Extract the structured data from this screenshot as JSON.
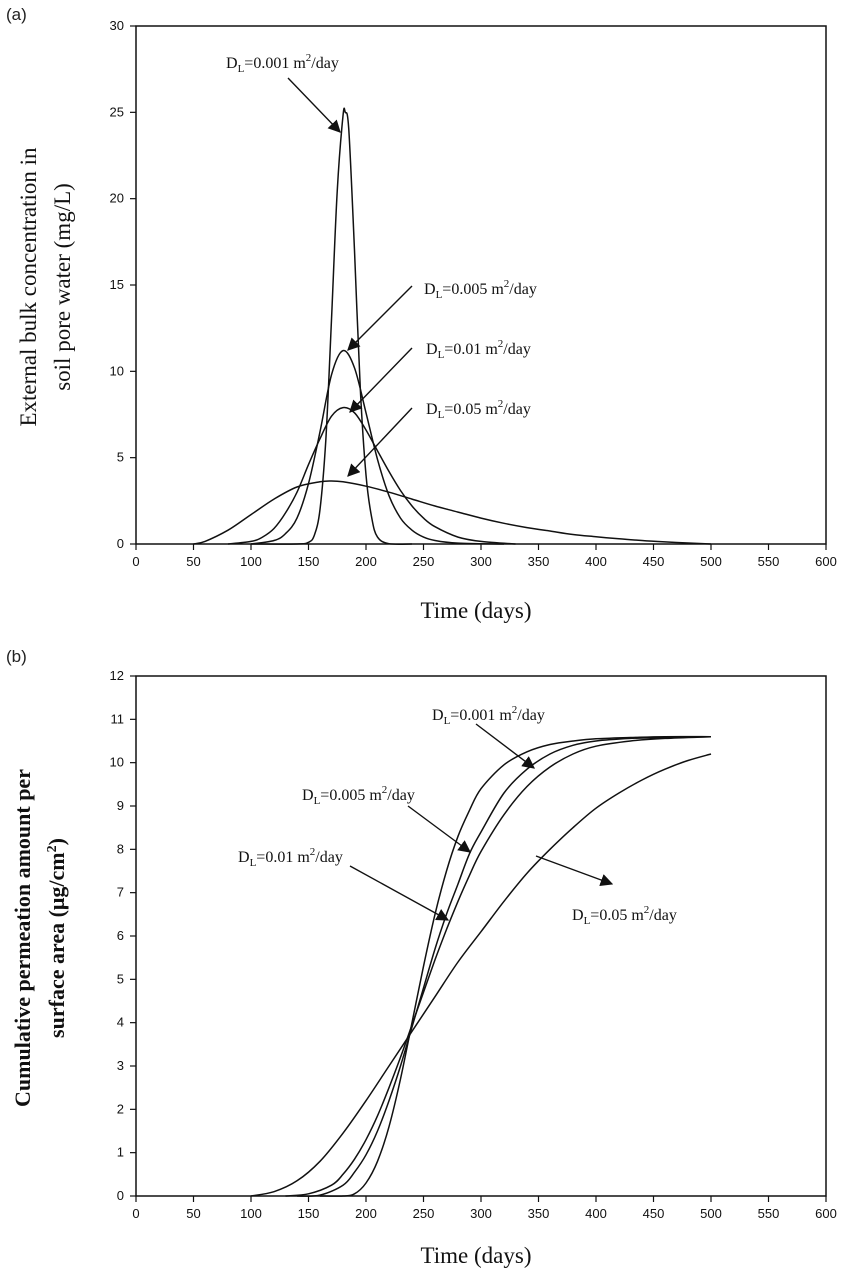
{
  "chart_data": [
    {
      "panel_label": "(a)",
      "type": "line",
      "xlabel": "Time (days)",
      "ylabel_lines": [
        "External bulk concentration in",
        "soil pore water (mg/L)"
      ],
      "xlim": [
        0,
        600
      ],
      "ylim": [
        0,
        30
      ],
      "xticks": [
        0,
        50,
        100,
        150,
        200,
        250,
        300,
        350,
        400,
        450,
        500,
        550,
        600
      ],
      "yticks": [
        0,
        5,
        10,
        15,
        20,
        25,
        30
      ],
      "grid": false,
      "series": [
        {
          "label_prefix": "D",
          "label_sub": "L",
          "label_value": "=0.001 m",
          "label_sup": "2",
          "label_unit": "/day",
          "x": [
            100,
            140,
            150,
            155,
            160,
            165,
            170,
            175,
            180,
            182,
            185,
            190,
            195,
            200,
            205,
            210,
            220,
            240
          ],
          "y": [
            0,
            0,
            0.1,
            0.5,
            2.0,
            6.0,
            13.0,
            20.5,
            24.8,
            25.0,
            24.0,
            17.0,
            9.0,
            4.0,
            1.5,
            0.4,
            0.02,
            0
          ]
        },
        {
          "label_prefix": "D",
          "label_sub": "L",
          "label_value": "=0.005 m",
          "label_sup": "2",
          "label_unit": "/day",
          "x": [
            100,
            120,
            130,
            140,
            150,
            160,
            170,
            180,
            190,
            200,
            210,
            220,
            230,
            240,
            250,
            260,
            280,
            320
          ],
          "y": [
            0,
            0.2,
            0.6,
            1.5,
            3.5,
            6.5,
            9.8,
            11.2,
            10.2,
            7.6,
            4.9,
            2.8,
            1.5,
            0.8,
            0.4,
            0.2,
            0.05,
            0
          ]
        },
        {
          "label_prefix": "D",
          "label_sub": "L",
          "label_value": "=0.01 m",
          "label_sup": "2",
          "label_unit": "/day",
          "x": [
            80,
            100,
            110,
            120,
            130,
            140,
            150,
            160,
            170,
            180,
            190,
            200,
            210,
            220,
            230,
            240,
            250,
            260,
            280,
            300,
            330
          ],
          "y": [
            0,
            0.15,
            0.4,
            0.9,
            1.8,
            3.0,
            4.6,
            6.1,
            7.4,
            7.9,
            7.6,
            6.6,
            5.4,
            4.2,
            3.1,
            2.2,
            1.5,
            1.0,
            0.4,
            0.15,
            0
          ]
        },
        {
          "label_prefix": "D",
          "label_sub": "L",
          "label_value": "=0.05 m",
          "label_sup": "2",
          "label_unit": "/day",
          "x": [
            50,
            60,
            80,
            100,
            120,
            140,
            160,
            170,
            180,
            200,
            220,
            240,
            260,
            280,
            300,
            320,
            340,
            360,
            380,
            400,
            420,
            440,
            460,
            480,
            500
          ],
          "y": [
            0,
            0.15,
            0.8,
            1.7,
            2.6,
            3.3,
            3.6,
            3.65,
            3.6,
            3.35,
            3.0,
            2.6,
            2.2,
            1.85,
            1.5,
            1.2,
            0.95,
            0.75,
            0.55,
            0.42,
            0.3,
            0.2,
            0.12,
            0.06,
            0
          ]
        }
      ]
    },
    {
      "panel_label": "(b)",
      "type": "line",
      "xlabel": "Time (days)",
      "ylabel_lines": [
        "Cumulative permeation amount per",
        "surface area (μg/cm",
        "2",
        ")"
      ],
      "xlim": [
        0,
        600
      ],
      "ylim": [
        0,
        12
      ],
      "xticks": [
        0,
        50,
        100,
        150,
        200,
        250,
        300,
        350,
        400,
        450,
        500,
        550,
        600
      ],
      "yticks": [
        0,
        1,
        2,
        3,
        4,
        5,
        6,
        7,
        8,
        9,
        10,
        11,
        12
      ],
      "grid": false,
      "series": [
        {
          "label_prefix": "D",
          "label_sub": "L",
          "label_value": "=0.001 m",
          "label_sup": "2",
          "label_unit": "/day",
          "x": [
            160,
            180,
            190,
            200,
            210,
            220,
            230,
            240,
            250,
            260,
            270,
            280,
            290,
            300,
            320,
            340,
            360,
            380,
            400,
            430,
            460,
            500
          ],
          "y": [
            0,
            0,
            0.05,
            0.3,
            0.8,
            1.6,
            2.7,
            4.0,
            5.3,
            6.5,
            7.5,
            8.3,
            8.9,
            9.4,
            9.95,
            10.25,
            10.42,
            10.5,
            10.55,
            10.58,
            10.6,
            10.6
          ]
        },
        {
          "label_prefix": "D",
          "label_sub": "L",
          "label_value": "=0.005 m",
          "label_sup": "2",
          "label_unit": "/day",
          "x": [
            140,
            160,
            180,
            190,
            200,
            210,
            220,
            230,
            240,
            250,
            260,
            270,
            280,
            290,
            300,
            320,
            340,
            360,
            380,
            400,
            430,
            460,
            500
          ],
          "y": [
            0,
            0.02,
            0.25,
            0.55,
            0.95,
            1.5,
            2.2,
            3.0,
            3.9,
            4.8,
            5.7,
            6.5,
            7.2,
            7.9,
            8.4,
            9.3,
            9.85,
            10.2,
            10.4,
            10.5,
            10.56,
            10.58,
            10.6
          ]
        },
        {
          "label_prefix": "D",
          "label_sub": "L",
          "label_value": "=0.01 m",
          "label_sup": "2",
          "label_unit": "/day",
          "x": [
            130,
            150,
            170,
            180,
            190,
            200,
            210,
            220,
            230,
            240,
            250,
            260,
            270,
            280,
            290,
            300,
            320,
            340,
            360,
            380,
            400,
            430,
            460,
            500
          ],
          "y": [
            0,
            0.05,
            0.25,
            0.5,
            0.85,
            1.3,
            1.85,
            2.5,
            3.2,
            3.95,
            4.7,
            5.45,
            6.15,
            6.8,
            7.4,
            7.95,
            8.8,
            9.45,
            9.9,
            10.2,
            10.38,
            10.5,
            10.56,
            10.6
          ]
        },
        {
          "label_prefix": "D",
          "label_sub": "L",
          "label_value": "=0.05 m",
          "label_sup": "2",
          "label_unit": "/day",
          "x": [
            100,
            120,
            140,
            160,
            180,
            200,
            220,
            240,
            260,
            280,
            300,
            320,
            340,
            360,
            380,
            400,
            420,
            440,
            460,
            480,
            500
          ],
          "y": [
            0,
            0.1,
            0.35,
            0.8,
            1.45,
            2.2,
            3.0,
            3.8,
            4.6,
            5.4,
            6.1,
            6.8,
            7.45,
            8.0,
            8.5,
            8.95,
            9.3,
            9.6,
            9.85,
            10.05,
            10.2
          ]
        }
      ]
    }
  ]
}
